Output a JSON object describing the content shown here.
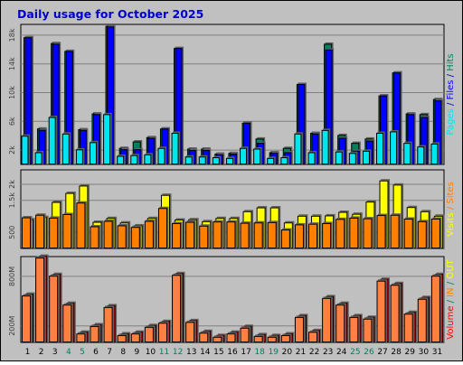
{
  "title": "Daily usage for October 2025",
  "colors": {
    "background": "#c0c0c0",
    "plot": "#c0c0c0",
    "title": "#0000cc",
    "hits": "#00805c",
    "files": "#0000ff",
    "pages": "#00e6f0",
    "visits": "#ffff00",
    "sites": "#ff8000",
    "volume": "#ff0000",
    "volume_fill": "#ff8040"
  },
  "chart_data": [
    {
      "type": "bar",
      "panel": "pages-files-hits",
      "categories": [
        "1",
        "2",
        "3",
        "4",
        "5",
        "6",
        "7",
        "8",
        "9",
        "10",
        "11",
        "12",
        "13",
        "14",
        "15",
        "16",
        "17",
        "18",
        "19",
        "20",
        "21",
        "22",
        "23",
        "24",
        "25",
        "26",
        "27",
        "28",
        "29",
        "30",
        "31"
      ],
      "weekend_days": [
        "4",
        "5",
        "11",
        "12",
        "18",
        "19",
        "25",
        "26"
      ],
      "yticks": [
        "2k",
        "6k",
        "10k",
        "14k",
        "18k"
      ],
      "ylim": [
        0,
        19500
      ],
      "legend": [
        {
          "text": "Pages",
          "color_key": "pages"
        },
        {
          "text": " / ",
          "color_key": "title"
        },
        {
          "text": "Files",
          "color_key": "files"
        },
        {
          "text": " / ",
          "color_key": "title"
        },
        {
          "text": "Hits",
          "color_key": "hits"
        }
      ],
      "series": [
        {
          "name": "Hits",
          "values": [
            17700,
            5000,
            16900,
            15800,
            4900,
            7100,
            19300,
            2300,
            3200,
            3800,
            5000,
            16200,
            2200,
            2200,
            1500,
            1600,
            5800,
            3600,
            1700,
            2300,
            11200,
            4400,
            16800,
            4100,
            3000,
            3600,
            9600,
            12800,
            7100,
            7000,
            9100
          ]
        },
        {
          "name": "Files",
          "values": [
            17700,
            4800,
            16800,
            15800,
            4800,
            7000,
            19200,
            2100,
            2100,
            3700,
            5000,
            16200,
            2000,
            2000,
            1400,
            1500,
            5800,
            3000,
            1600,
            1700,
            11200,
            4300,
            16000,
            3700,
            1900,
            3300,
            9600,
            12800,
            7000,
            6600,
            8900
          ]
        },
        {
          "name": "Pages",
          "values": [
            4000,
            1700,
            6600,
            4300,
            2100,
            3100,
            7000,
            1200,
            1300,
            1400,
            2300,
            4400,
            1100,
            1100,
            1000,
            900,
            2300,
            2200,
            900,
            1000,
            4300,
            1700,
            4800,
            1800,
            1600,
            1900,
            4400,
            4600,
            3000,
            2500,
            2900
          ]
        }
      ]
    },
    {
      "type": "bar",
      "panel": "visits-sites",
      "categories": [
        "1",
        "2",
        "3",
        "4",
        "5",
        "6",
        "7",
        "8",
        "9",
        "10",
        "11",
        "12",
        "13",
        "14",
        "15",
        "16",
        "17",
        "18",
        "19",
        "20",
        "21",
        "22",
        "23",
        "24",
        "25",
        "26",
        "27",
        "28",
        "29",
        "30",
        "31"
      ],
      "yticks": [
        "500",
        "1.5k",
        "2k"
      ],
      "ylim": [
        0,
        2450
      ],
      "legend": [
        {
          "text": "Visits",
          "color_key": "visits"
        },
        {
          "text": " / ",
          "color_key": "sites"
        },
        {
          "text": "Sites",
          "color_key": "sites"
        }
      ],
      "series": [
        {
          "name": "Visits",
          "values": [
            910,
            980,
            1450,
            1730,
            1960,
            830,
            950,
            810,
            720,
            950,
            1670,
            900,
            910,
            850,
            950,
            950,
            1160,
            1280,
            1280,
            810,
            1020,
            1020,
            1030,
            1140,
            1080,
            1460,
            2120,
            1990,
            1290,
            1160,
            1020
          ]
        },
        {
          "name": "Sites",
          "values": [
            970,
            1050,
            960,
            1070,
            1430,
            690,
            860,
            720,
            670,
            860,
            1260,
            790,
            830,
            710,
            840,
            840,
            800,
            810,
            820,
            590,
            750,
            770,
            790,
            920,
            960,
            940,
            1040,
            1050,
            930,
            850,
            930
          ]
        }
      ]
    },
    {
      "type": "bar",
      "panel": "volume-in-out",
      "categories": [
        "1",
        "2",
        "3",
        "4",
        "5",
        "6",
        "7",
        "8",
        "9",
        "10",
        "11",
        "12",
        "13",
        "14",
        "15",
        "16",
        "17",
        "18",
        "19",
        "20",
        "21",
        "22",
        "23",
        "24",
        "25",
        "26",
        "27",
        "28",
        "29",
        "30",
        "31"
      ],
      "yticks": [
        "200M",
        "800M"
      ],
      "ylim": [
        0,
        1040
      ],
      "legend": [
        {
          "text": "Volume",
          "color_key": "volume"
        },
        {
          "text": " / ",
          "color_key": "hits"
        },
        {
          "text": "IN",
          "color_key": "sites"
        },
        {
          "text": " / ",
          "color_key": "hits"
        },
        {
          "text": "OUT",
          "color_key": "visits"
        }
      ],
      "series": [
        {
          "name": "Volume",
          "values": [
            590,
            1050,
            830,
            480,
            130,
            220,
            450,
            110,
            130,
            210,
            260,
            840,
            270,
            140,
            90,
            130,
            200,
            100,
            90,
            110,
            330,
            150,
            560,
            480,
            330,
            310,
            770,
            720,
            370,
            550,
            830
          ]
        }
      ]
    }
  ]
}
